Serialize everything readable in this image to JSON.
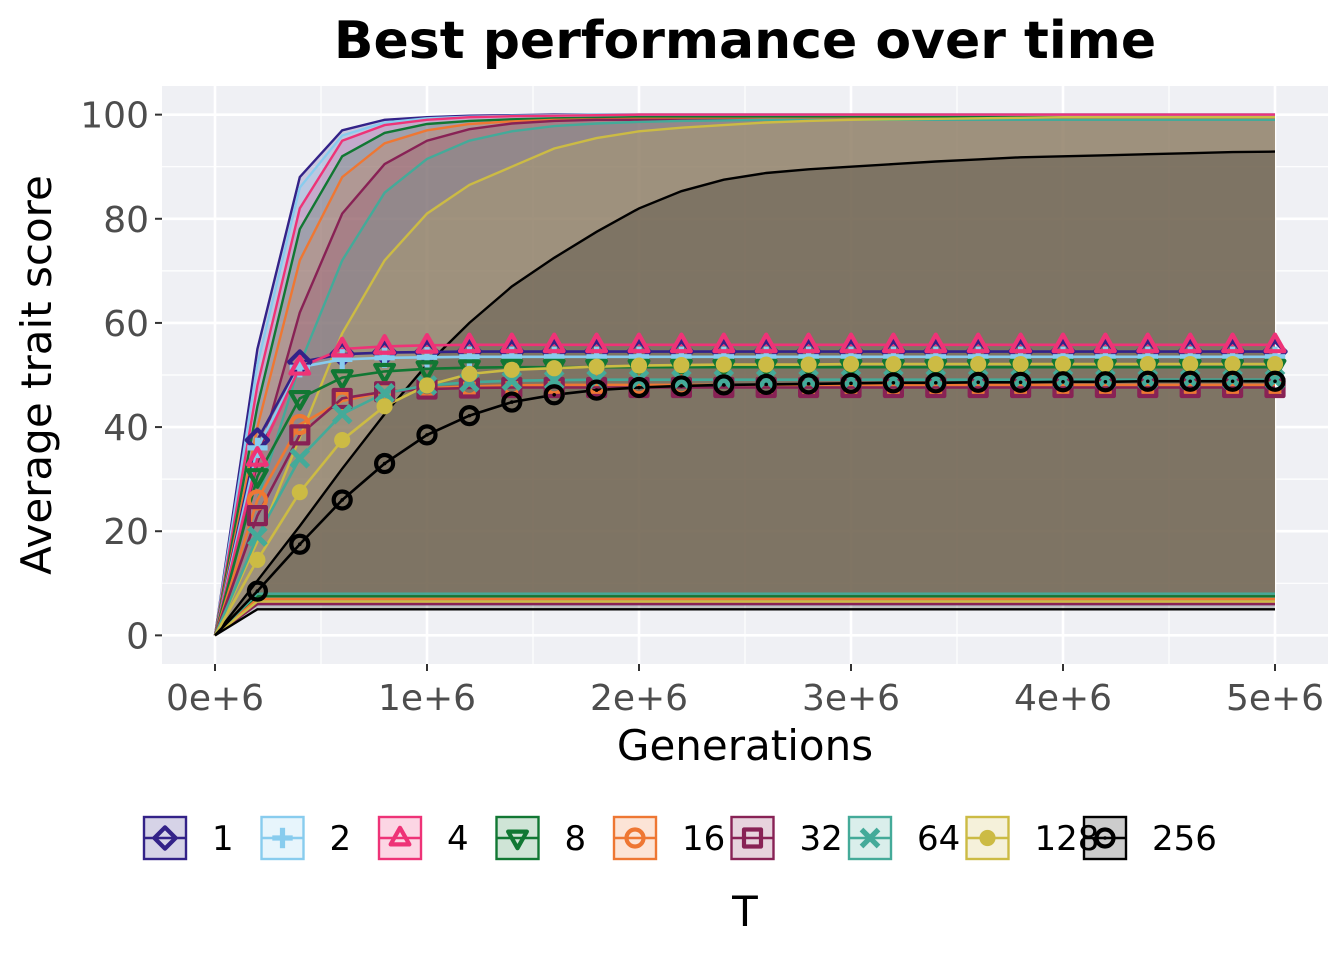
{
  "chart_data": {
    "type": "line",
    "title": "Best performance over time",
    "xlabel": "Generations",
    "ylabel": "Average trait score",
    "legend_title": "T",
    "legend_position": "bottom",
    "xlim": [
      -250000,
      5250000
    ],
    "ylim": [
      -5.5,
      105.5
    ],
    "x_ticks": [
      0,
      1000000,
      2000000,
      3000000,
      4000000,
      5000000
    ],
    "x_tick_labels": [
      "0e+6",
      "1e+6",
      "2e+6",
      "3e+6",
      "4e+6",
      "5e+6"
    ],
    "y_ticks": [
      0,
      20,
      40,
      60,
      80,
      100
    ],
    "y_tick_labels": [
      "0",
      "20",
      "40",
      "60",
      "80",
      "100"
    ],
    "grid": true,
    "panel_background": "#eff0f4",
    "x": [
      0,
      200000,
      400000,
      600000,
      800000,
      1000000,
      1200000,
      1400000,
      1600000,
      1800000,
      2000000,
      2200000,
      2400000,
      2600000,
      2800000,
      3000000,
      3200000,
      3400000,
      3600000,
      3800000,
      4000000,
      4200000,
      4400000,
      4600000,
      4800000,
      5000000
    ],
    "series": [
      {
        "name": "1",
        "color": "#332288",
        "marker": "diamond-open",
        "values": [
          0,
          37.5,
          52.5,
          54,
          54.3,
          54.4,
          54.5,
          54.5,
          54.5,
          54.5,
          54.5,
          54.5,
          54.5,
          54.5,
          54.5,
          54.5,
          54.5,
          54.5,
          54.5,
          54.5,
          54.5,
          54.5,
          54.5,
          54.5,
          54.5,
          54.5
        ],
        "band_upper": [
          0,
          55,
          88,
          97,
          99,
          99.5,
          99.8,
          99.9,
          100,
          100,
          100,
          100,
          100,
          100,
          100,
          100,
          100,
          100,
          100,
          100,
          100,
          100,
          100,
          100,
          100,
          100
        ],
        "band_lower": [
          0,
          6,
          6,
          6,
          6,
          6,
          6,
          6,
          6,
          6,
          6,
          6,
          6,
          6,
          6,
          6,
          6,
          6,
          6,
          6,
          6,
          6,
          6,
          6,
          6,
          6
        ]
      },
      {
        "name": "2",
        "color": "#88ccee",
        "marker": "plus",
        "values": [
          0,
          36,
          51.5,
          53,
          53.3,
          53.4,
          53.5,
          53.5,
          53.5,
          53.5,
          53.5,
          53.5,
          53.5,
          53.5,
          53.5,
          53.5,
          53.5,
          53.5,
          53.5,
          53.5,
          53.5,
          53.5,
          53.5,
          53.5,
          53.5,
          53.5
        ],
        "band_upper": [
          0,
          52,
          86,
          96,
          98.5,
          99.3,
          99.6,
          99.8,
          99.9,
          100,
          100,
          100,
          100,
          100,
          100,
          100,
          100,
          100,
          100,
          100,
          100,
          100,
          100,
          100,
          100,
          100
        ],
        "band_lower": [
          0,
          7,
          7,
          7,
          7,
          7,
          7,
          7,
          7,
          7,
          7,
          7,
          7,
          7,
          7,
          7,
          7,
          7,
          7,
          7,
          7,
          7,
          7,
          7,
          7,
          7
        ]
      },
      {
        "name": "4",
        "color": "#ee3377",
        "marker": "triangle-open",
        "values": [
          0,
          34,
          51.5,
          55,
          55.5,
          55.7,
          55.8,
          55.8,
          55.8,
          55.8,
          55.8,
          55.8,
          55.8,
          55.8,
          55.8,
          55.8,
          55.8,
          55.8,
          55.8,
          55.8,
          55.8,
          55.8,
          55.8,
          55.8,
          55.8,
          55.8
        ],
        "band_upper": [
          0,
          48,
          82,
          95,
          98,
          99,
          99.5,
          99.7,
          99.8,
          99.9,
          100,
          100,
          100,
          100,
          100,
          100,
          100,
          100,
          100,
          100,
          100,
          100,
          100,
          100,
          100,
          100
        ],
        "band_lower": [
          0,
          6.5,
          6.5,
          6.5,
          6.5,
          6.5,
          6.5,
          6.5,
          6.5,
          6.5,
          6.5,
          6.5,
          6.5,
          6.5,
          6.5,
          6.5,
          6.5,
          6.5,
          6.5,
          6.5,
          6.5,
          6.5,
          6.5,
          6.5,
          6.5,
          6.5
        ]
      },
      {
        "name": "8",
        "color": "#117733",
        "marker": "triangle-down-open",
        "values": [
          0,
          30.5,
          45.5,
          49.5,
          50.7,
          51.2,
          51.4,
          51.5,
          51.5,
          51.5,
          51.5,
          51.5,
          51.5,
          51.5,
          51.5,
          51.5,
          51.5,
          51.5,
          51.5,
          51.5,
          51.5,
          51.5,
          51.5,
          51.5,
          51.5,
          51.5
        ],
        "band_upper": [
          0,
          44,
          78,
          92,
          96.5,
          98.2,
          98.8,
          99.1,
          99.3,
          99.4,
          99.5,
          99.5,
          99.5,
          99.5,
          99.5,
          99.5,
          99.5,
          99.5,
          99.5,
          99.5,
          99.5,
          99.5,
          99.5,
          99.5,
          99.5,
          99.5
        ],
        "band_lower": [
          0,
          7.5,
          7.5,
          7.5,
          7.5,
          7.5,
          7.5,
          7.5,
          7.5,
          7.5,
          7.5,
          7.5,
          7.5,
          7.5,
          7.5,
          7.5,
          7.5,
          7.5,
          7.5,
          7.5,
          7.5,
          7.5,
          7.5,
          7.5,
          7.5,
          7.5
        ]
      },
      {
        "name": "16",
        "color": "#ee7733",
        "marker": "circle-open",
        "values": [
          0,
          26,
          40.5,
          45,
          46.8,
          47.5,
          47.8,
          48,
          48.1,
          48.1,
          48.1,
          48.1,
          48.1,
          48.1,
          48.1,
          48.1,
          48.1,
          48.1,
          48.1,
          48.1,
          48.1,
          48.1,
          48.1,
          48.1,
          48.1,
          48.1
        ],
        "band_upper": [
          0,
          40,
          72,
          88,
          94.5,
          97,
          98.2,
          98.7,
          99,
          99.1,
          99.2,
          99.2,
          99.2,
          99.2,
          99.2,
          99.2,
          99.2,
          99.2,
          99.2,
          99.2,
          99.2,
          99.2,
          99.2,
          99.2,
          99.2,
          99.2
        ],
        "band_lower": [
          0,
          7,
          7,
          7,
          7,
          7,
          7,
          7,
          7,
          7,
          7,
          7,
          7,
          7,
          7,
          7,
          7,
          7,
          7,
          7,
          7,
          7,
          7,
          7,
          7,
          7
        ]
      },
      {
        "name": "32",
        "color": "#882255",
        "marker": "square-open",
        "values": [
          0,
          23,
          38.5,
          45.5,
          46.8,
          47.3,
          47.5,
          47.6,
          47.6,
          47.6,
          47.6,
          47.6,
          47.6,
          47.6,
          47.6,
          47.6,
          47.6,
          47.6,
          47.6,
          47.6,
          47.6,
          47.6,
          47.6,
          47.6,
          47.6,
          47.6
        ],
        "band_upper": [
          0,
          33,
          62,
          81,
          90.5,
          95,
          97.2,
          98.3,
          98.8,
          99,
          99,
          99,
          99,
          99,
          99,
          99,
          99,
          99,
          99,
          99,
          99,
          99,
          99,
          99,
          99,
          99
        ],
        "band_lower": [
          0,
          6,
          6,
          6,
          6,
          6,
          6,
          6,
          6,
          6,
          6,
          6,
          6,
          6,
          6,
          6,
          6,
          6,
          6,
          6,
          6,
          6,
          6,
          6,
          6,
          6
        ]
      },
      {
        "name": "64",
        "color": "#44aa99",
        "marker": "x",
        "values": [
          0,
          19,
          34,
          42.5,
          46.5,
          48,
          48.6,
          48.9,
          49,
          49.1,
          49.1,
          49.1,
          49.1,
          49.1,
          49.1,
          49.1,
          49.1,
          49.1,
          49.1,
          49.1,
          49.1,
          49.1,
          49.1,
          49.1,
          49.1,
          49.1
        ],
        "band_upper": [
          0,
          26,
          52,
          72,
          85,
          91.5,
          95,
          96.8,
          97.8,
          98.3,
          98.6,
          98.8,
          98.9,
          99,
          99,
          99,
          99,
          99,
          99,
          99,
          99,
          99,
          99,
          99,
          99,
          99
        ],
        "band_lower": [
          0,
          8,
          8,
          8,
          8,
          8,
          8,
          8,
          8,
          8,
          8,
          8,
          8,
          8,
          8,
          8,
          8,
          8,
          8,
          8,
          8,
          8,
          8,
          8,
          8,
          8
        ]
      },
      {
        "name": "128",
        "color": "#ccbb44",
        "marker": "dot",
        "values": [
          0,
          14.5,
          27.5,
          37.5,
          44,
          48,
          50.2,
          51,
          51.3,
          51.6,
          51.8,
          51.9,
          52,
          52,
          52,
          52.1,
          52.1,
          52.1,
          52.1,
          52.1,
          52.1,
          52.1,
          52.1,
          52.1,
          52.1,
          52.1
        ],
        "band_upper": [
          0,
          18,
          38,
          58,
          72,
          81,
          86.5,
          90,
          93.5,
          95.5,
          96.8,
          97.5,
          98,
          98.5,
          98.8,
          99,
          99.1,
          99.2,
          99.3,
          99.4,
          99.5,
          99.5,
          99.5,
          99.5,
          99.5,
          99.5
        ],
        "band_lower": [
          0,
          6.5,
          6.5,
          6.5,
          6.5,
          6.5,
          6.5,
          6.5,
          6.5,
          6.5,
          6.5,
          6.5,
          6.5,
          6.5,
          6.5,
          6.5,
          6.5,
          6.5,
          6.5,
          6.5,
          6.5,
          6.5,
          6.5,
          6.5,
          6.5,
          6.5
        ]
      },
      {
        "name": "256",
        "color": "#000000",
        "marker": "circle-open-dot",
        "values": [
          0,
          8.5,
          17.5,
          26,
          33,
          38.5,
          42.2,
          44.8,
          46.2,
          47.1,
          47.6,
          47.9,
          48.1,
          48.2,
          48.3,
          48.4,
          48.5,
          48.5,
          48.6,
          48.6,
          48.7,
          48.7,
          48.8,
          48.8,
          48.8,
          48.8
        ],
        "band_upper": [
          0,
          10.5,
          21,
          32,
          42.5,
          52,
          60,
          67,
          72.5,
          77.5,
          82,
          85.3,
          87.5,
          88.8,
          89.5,
          90,
          90.5,
          91,
          91.4,
          91.8,
          92,
          92.2,
          92.4,
          92.6,
          92.8,
          92.9
        ],
        "band_lower": [
          0,
          5,
          5,
          5,
          5,
          5,
          5,
          5,
          5,
          5,
          5,
          5,
          5,
          5,
          5,
          5,
          5,
          5,
          5,
          5,
          5,
          5,
          5,
          5,
          5,
          5
        ]
      }
    ]
  }
}
